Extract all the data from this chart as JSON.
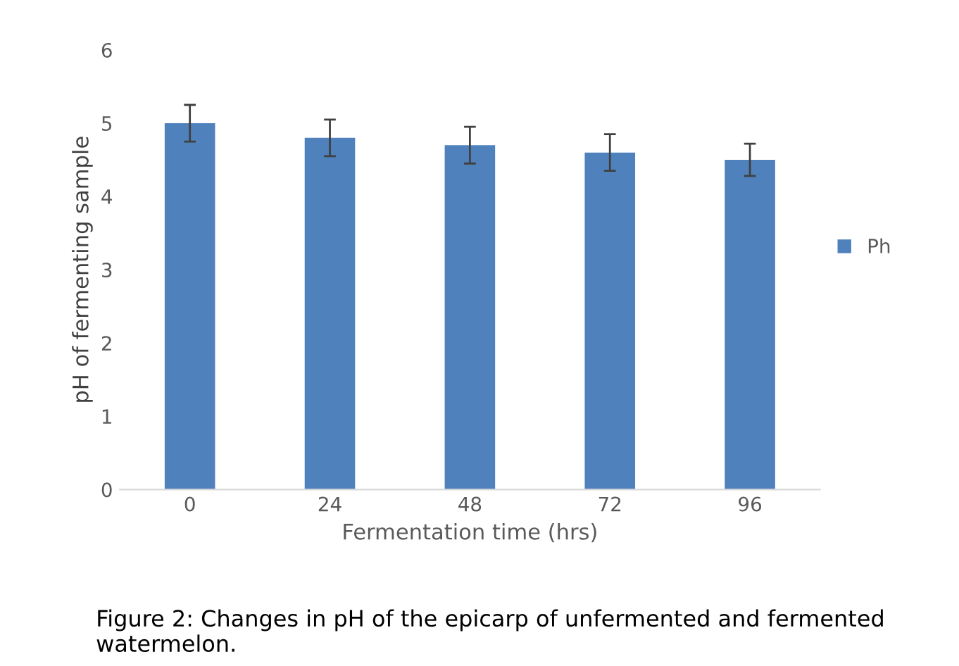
{
  "chart_data": {
    "type": "bar",
    "categories": [
      "0",
      "24",
      "48",
      "72",
      "96"
    ],
    "series": [
      {
        "name": "Ph",
        "color": "#4f81bd",
        "values": [
          5.0,
          4.8,
          4.7,
          4.6,
          4.5
        ],
        "errors": [
          0.25,
          0.25,
          0.25,
          0.25,
          0.22
        ]
      }
    ],
    "xlabel": "Fermentation time (hrs)",
    "ylabel": "pH of fermenting sample",
    "ylim": [
      0,
      6
    ],
    "yticks": [
      0,
      1,
      2,
      3,
      4,
      5,
      6
    ],
    "grid": false,
    "legend": "right",
    "annotations": [
      "Figure 2: Changes in pH of the epicarp of unfermented and fermented watermelon."
    ]
  }
}
